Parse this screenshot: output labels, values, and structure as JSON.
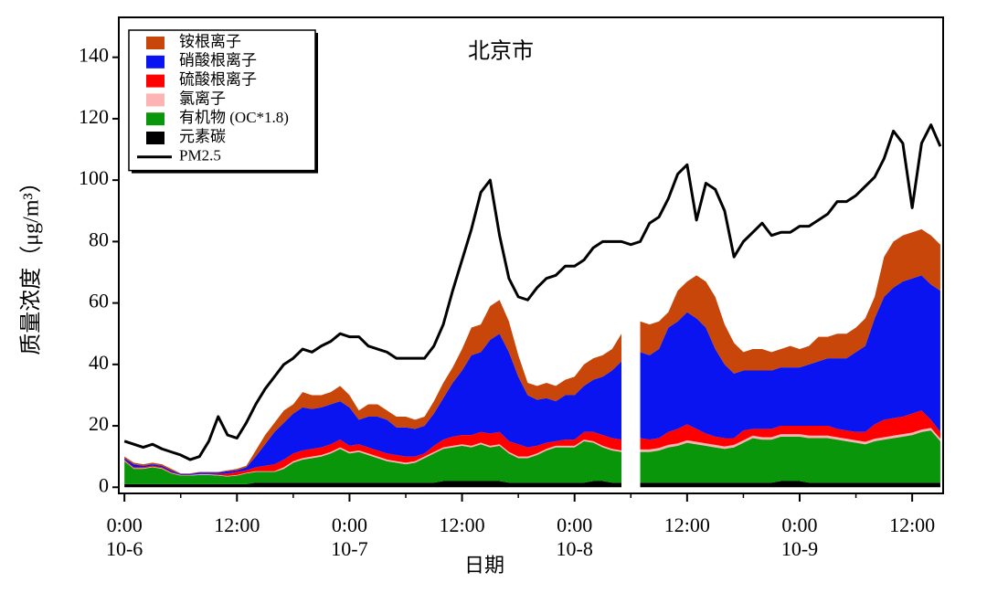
{
  "chart_data": {
    "type": "area",
    "stacked": true,
    "title": "北京市",
    "x_label": "日期",
    "y_label": "质量浓度（μg/m³）",
    "legend": "upper left",
    "x": [
      0,
      1,
      2,
      3,
      4,
      5,
      6,
      7,
      8,
      9,
      10,
      11,
      12,
      13,
      14,
      15,
      16,
      17,
      18,
      19,
      20,
      21,
      22,
      23,
      24,
      25,
      26,
      27,
      28,
      29,
      30,
      31,
      32,
      33,
      34,
      35,
      36,
      37,
      38,
      39,
      40,
      41,
      42,
      43,
      44,
      45,
      46,
      47,
      48,
      49,
      50,
      51,
      52,
      53,
      54,
      55,
      56,
      57,
      58,
      59,
      60,
      61,
      62,
      63,
      64,
      65,
      66,
      67,
      68,
      69,
      70,
      71,
      72,
      73,
      74,
      75,
      76,
      77,
      78,
      79,
      80,
      81,
      82,
      83,
      84,
      85,
      86,
      87
    ],
    "xlim": [
      -0.6,
      87.3
    ],
    "xticks": [
      {
        "value": 0,
        "label": "0:00"
      },
      {
        "value": 12,
        "label": "12:00"
      },
      {
        "value": 24,
        "label": "0:00"
      },
      {
        "value": 36,
        "label": "12:00"
      },
      {
        "value": 48,
        "label": "0:00"
      },
      {
        "value": 60,
        "label": "12:00"
      },
      {
        "value": 72,
        "label": "0:00"
      },
      {
        "value": 84,
        "label": "12:00"
      }
    ],
    "xtick_dates": [
      {
        "value": 0,
        "label": "10-6"
      },
      {
        "value": 24,
        "label": "10-7"
      },
      {
        "value": 48,
        "label": "10-8"
      },
      {
        "value": 72,
        "label": "10-9"
      }
    ],
    "xminorticks": [
      6,
      18,
      30,
      42,
      54,
      66,
      78
    ],
    "ylim": [
      -2,
      153
    ],
    "yticks": [
      0,
      20,
      40,
      60,
      80,
      100,
      120,
      140
    ],
    "series": [
      {
        "name": "铵根离子",
        "color": "#c8460a",
        "values": [
          0.5,
          0.5,
          0.5,
          0.5,
          0.5,
          0.5,
          0.2,
          0.2,
          0.2,
          0.2,
          0.2,
          0.3,
          0.5,
          0.5,
          2,
          3,
          3,
          4,
          3,
          5,
          4.5,
          4,
          4,
          5,
          4,
          3,
          4,
          4,
          3,
          3.5,
          3.5,
          3,
          3,
          4,
          5,
          5,
          7,
          9,
          9,
          11,
          11,
          10,
          7,
          4,
          4.5,
          5,
          5,
          5,
          6,
          7,
          7,
          7,
          7,
          9,
          null,
          10,
          10,
          9,
          5,
          10,
          10,
          14,
          15,
          17,
          13,
          10,
          6,
          7,
          7,
          6,
          6,
          7,
          6,
          6,
          8,
          7,
          8,
          8,
          8,
          9,
          7,
          13,
          15,
          15,
          15,
          15,
          16,
          15
        ]
      },
      {
        "name": "硝酸根离子",
        "color": "#0a14f0",
        "values": [
          0.5,
          1,
          0.5,
          0.5,
          0.5,
          0.5,
          0.3,
          0.3,
          0.5,
          0.5,
          0.5,
          0.7,
          0.5,
          1,
          3.5,
          7,
          10.5,
          12,
          13,
          14,
          13,
          13,
          13,
          12.5,
          12.5,
          8,
          10,
          11,
          11,
          9,
          9.5,
          9,
          9,
          10.5,
          13.5,
          17.5,
          21,
          26,
          26,
          30.5,
          32,
          29,
          22,
          17,
          15,
          14.5,
          13,
          14.5,
          14.5,
          15,
          17,
          19,
          22,
          25.5,
          null,
          28,
          27.5,
          29,
          34,
          35,
          36.5,
          36,
          34.5,
          28.5,
          24,
          21,
          19.5,
          19,
          19,
          19,
          19,
          19,
          19,
          20,
          21,
          22,
          23,
          23.5,
          26,
          28,
          34.5,
          40,
          42.5,
          44,
          44,
          44,
          44,
          46
        ]
      },
      {
        "name": "硫酸根离子",
        "color": "#ff0000",
        "values": [
          0.3,
          0.3,
          0.3,
          0.3,
          0.3,
          0.3,
          0,
          0,
          0.1,
          0.1,
          0.3,
          0.8,
          1,
          0.8,
          1.3,
          1.8,
          2.3,
          2.5,
          2.5,
          2.5,
          2.5,
          2.5,
          2.5,
          2.5,
          2,
          2,
          2,
          2,
          2,
          2,
          2,
          1.5,
          1,
          2,
          2.5,
          3,
          3,
          3.5,
          3.5,
          4,
          4,
          3.5,
          4,
          3,
          2.5,
          2,
          1.5,
          2,
          2,
          2.5,
          3,
          3.5,
          3.5,
          3.5,
          null,
          3.7,
          3.2,
          3.2,
          4.2,
          4.7,
          5.2,
          4.2,
          3.2,
          2.7,
          2.7,
          2.2,
          3.2,
          2.2,
          2.7,
          2.7,
          2.7,
          2.7,
          2.7,
          3.2,
          3.2,
          3.2,
          2.7,
          2.7,
          2.7,
          3.2,
          4.7,
          5.7,
          5.7,
          5.7,
          6.2,
          6.2,
          2.7,
          2.2
        ]
      },
      {
        "name": "氯离子",
        "color": "#ffb4b4",
        "values": [
          0.2,
          0.2,
          0.2,
          0.2,
          0.2,
          0.2,
          0.2,
          0.2,
          0.2,
          0.2,
          0.2,
          0.2,
          0.2,
          0.2,
          0.2,
          0.2,
          0.2,
          0.5,
          0.5,
          0.5,
          0.5,
          0.5,
          0.5,
          0.5,
          0.5,
          0.5,
          0.5,
          0.5,
          0.5,
          0.5,
          0.5,
          0.5,
          0.5,
          0.5,
          0.5,
          0.5,
          0.5,
          0.5,
          0.5,
          0.5,
          0.5,
          0.5,
          0.5,
          0.5,
          0.5,
          0.5,
          0.5,
          0.5,
          0.5,
          0.5,
          0.5,
          0.5,
          0.5,
          0.5,
          null,
          0.8,
          0.8,
          0.8,
          0.8,
          0.8,
          0.8,
          0.8,
          0.8,
          0.8,
          0.8,
          0.8,
          0.8,
          0.8,
          0.8,
          0.8,
          0.8,
          0.8,
          0.8,
          0.8,
          0.8,
          0.8,
          0.8,
          0.8,
          0.8,
          0.8,
          0.8,
          0.8,
          0.8,
          0.8,
          0.8,
          0.8,
          0.8,
          0.8
        ]
      },
      {
        "name": "有机物 (OC*1.8)",
        "color": "#0a960a",
        "values": [
          7.5,
          5,
          5,
          5.5,
          5,
          3.5,
          2.8,
          2.8,
          3,
          3,
          2.8,
          2.5,
          2.8,
          3.5,
          3.5,
          3.5,
          3.5,
          4.5,
          6.5,
          7.5,
          8,
          8.5,
          9.5,
          11,
          9.5,
          10,
          9,
          8,
          7,
          6.5,
          6,
          6.5,
          8,
          9.5,
          10.5,
          11,
          11.5,
          11,
          12,
          11,
          11.5,
          9.5,
          8,
          8,
          9,
          10.5,
          11.5,
          11.5,
          11.5,
          13.5,
          12.5,
          11,
          10.5,
          10,
          null,
          10,
          10,
          10.5,
          11.5,
          12,
          13,
          12.5,
          12,
          11.5,
          11,
          11.5,
          13,
          14.5,
          14,
          14,
          14.5,
          14.5,
          14.5,
          14.5,
          14.5,
          14.5,
          14,
          13.5,
          13,
          12.5,
          13.5,
          14,
          14.5,
          15,
          15.5,
          16.5,
          17,
          13.5
        ]
      },
      {
        "name": "元素碳",
        "color": "#000000",
        "values": [
          1,
          1,
          1,
          1,
          1,
          1,
          1,
          1,
          1,
          1,
          1,
          1,
          1,
          1,
          1.5,
          1.5,
          1.5,
          1.5,
          1.5,
          1.5,
          1.5,
          1.5,
          1.5,
          1.5,
          1.5,
          1.5,
          1.5,
          1.5,
          1.5,
          1.5,
          1.5,
          1.5,
          1.5,
          1.5,
          2,
          2,
          2,
          2,
          2,
          2,
          2,
          1.5,
          1.5,
          1.5,
          1.5,
          1.5,
          1.5,
          1.5,
          1.5,
          1.5,
          2,
          2,
          1.5,
          1.5,
          null,
          1.5,
          1.5,
          1.5,
          1.5,
          1.5,
          1.5,
          1.5,
          1.5,
          1.5,
          1.5,
          1.5,
          1.5,
          1.5,
          1.5,
          1.5,
          2,
          2,
          2,
          1.5,
          1.5,
          1.5,
          1.5,
          1.5,
          1.5,
          1.5,
          1.5,
          1.5,
          1.5,
          1.5,
          1.5,
          1.5,
          1.5,
          1.5
        ]
      },
      {
        "name": "PM2.5",
        "color": "#000000",
        "type": "line",
        "values": [
          15,
          14,
          13,
          14,
          12.5,
          11.5,
          10.5,
          9,
          10,
          15,
          23,
          17,
          16,
          21,
          27,
          32,
          36,
          40,
          42,
          45,
          44,
          46,
          47.5,
          50,
          49,
          49,
          46,
          45,
          44,
          42,
          42,
          42,
          42,
          46,
          53,
          64,
          74,
          84,
          96,
          100,
          82,
          68,
          62,
          61,
          65,
          68,
          69,
          72,
          72,
          74,
          78,
          80,
          80,
          80,
          79,
          80,
          86,
          88,
          94,
          102,
          105,
          87,
          99,
          97,
          90,
          75,
          80,
          83,
          86,
          82,
          83,
          83,
          85,
          85,
          87,
          89,
          93,
          93,
          95,
          98,
          101,
          107,
          116,
          112,
          91,
          112,
          118,
          111
        ]
      }
    ]
  }
}
